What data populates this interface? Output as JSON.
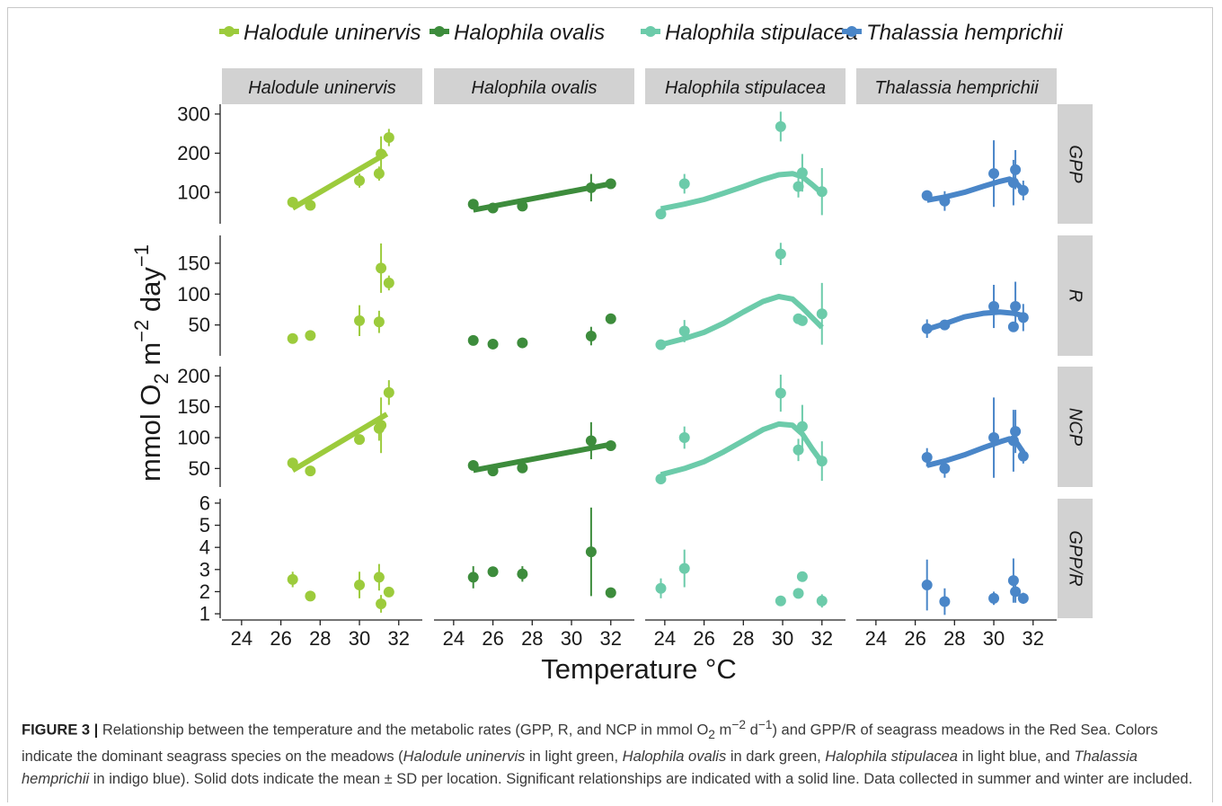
{
  "colors": {
    "Halodule uninervis": "#9ccb3c",
    "Halophila ovalis": "#3d8c3c",
    "Halophila stipulacea": "#6ccbaa",
    "Thalassia hemprichii": "#4a86c8",
    "strip_bg": "#d2d2d2"
  },
  "chart_data": {
    "type": "scatter",
    "species": [
      "Halodule uninervis",
      "Halophila ovalis",
      "Halophila stipulacea",
      "Thalassia hemprichii"
    ],
    "metrics": [
      "GPP",
      "R",
      "NCP",
      "GPP/R"
    ],
    "xlabel": "Temperature °C",
    "ylabel": {
      "main": "mmol O",
      "sub": "2",
      "m": " m",
      "exp1": "−2",
      "day": " day",
      "exp2": "−1"
    },
    "xlim": [
      23,
      33.2
    ],
    "xticks": [
      24,
      26,
      28,
      30,
      32
    ],
    "legend_position": "top",
    "rows": [
      {
        "metric": "GPP",
        "ylim": [
          20,
          325
        ],
        "yticks": [
          100,
          200,
          300
        ]
      },
      {
        "metric": "R",
        "ylim": [
          0,
          195
        ],
        "yticks": [
          50,
          100,
          150
        ]
      },
      {
        "metric": "NCP",
        "ylim": [
          20,
          215
        ],
        "yticks": [
          50,
          100,
          150,
          200
        ]
      },
      {
        "metric": "GPP/R",
        "ylim": [
          0.8,
          6.2
        ],
        "yticks": [
          1,
          2,
          3,
          4,
          5,
          6
        ]
      }
    ],
    "points": {
      "GPP": {
        "Halodule uninervis": [
          [
            26.6,
            75,
            null
          ],
          [
            27.5,
            67,
            null
          ],
          [
            30,
            130,
            18
          ],
          [
            31,
            148,
            18
          ],
          [
            31.1,
            198,
            45
          ],
          [
            31.5,
            240,
            22
          ]
        ],
        "Halophila ovalis": [
          [
            25,
            70,
            null
          ],
          [
            26,
            60,
            null
          ],
          [
            27.5,
            65,
            null
          ],
          [
            31,
            112,
            35
          ],
          [
            32,
            122,
            null
          ]
        ],
        "Halophila stipulacea": [
          [
            23.8,
            45,
            null
          ],
          [
            25,
            122,
            25
          ],
          [
            29.9,
            268,
            38
          ],
          [
            30.8,
            115,
            28
          ],
          [
            31,
            150,
            48
          ],
          [
            32,
            102,
            60
          ]
        ],
        "Thalassia hemprichii": [
          [
            26.6,
            92,
            null
          ],
          [
            27.5,
            78,
            25
          ],
          [
            30,
            148,
            85
          ],
          [
            31,
            125,
            58
          ],
          [
            31.1,
            158,
            50
          ],
          [
            31.5,
            105,
            25
          ]
        ]
      },
      "R": {
        "Halodule uninervis": [
          [
            26.6,
            28,
            null
          ],
          [
            27.5,
            33,
            null
          ],
          [
            30,
            57,
            25
          ],
          [
            31,
            55,
            18
          ],
          [
            31.1,
            142,
            40
          ],
          [
            31.5,
            118,
            12
          ]
        ],
        "Halophila ovalis": [
          [
            25,
            25,
            null
          ],
          [
            26,
            19,
            null
          ],
          [
            27.5,
            21,
            null
          ],
          [
            31,
            32,
            15
          ],
          [
            32,
            60,
            null
          ]
        ],
        "Halophila stipulacea": [
          [
            23.8,
            18,
            null
          ],
          [
            25,
            40,
            18
          ],
          [
            29.9,
            165,
            18
          ],
          [
            30.8,
            60,
            null
          ],
          [
            31,
            57,
            null
          ],
          [
            32,
            68,
            50
          ]
        ],
        "Thalassia hemprichii": [
          [
            26.6,
            44,
            15
          ],
          [
            27.5,
            50,
            8
          ],
          [
            30,
            80,
            35
          ],
          [
            31,
            47,
            null
          ],
          [
            31.1,
            80,
            40
          ],
          [
            31.5,
            62,
            22
          ]
        ]
      },
      "NCP": {
        "Halodule uninervis": [
          [
            26.6,
            59,
            null
          ],
          [
            27.5,
            46,
            null
          ],
          [
            30,
            97,
            null
          ],
          [
            31,
            115,
            20
          ],
          [
            31.1,
            120,
            45
          ],
          [
            31.5,
            173,
            20
          ]
        ],
        "Halophila ovalis": [
          [
            25,
            55,
            null
          ],
          [
            26,
            46,
            null
          ],
          [
            27.5,
            51,
            null
          ],
          [
            31,
            95,
            30
          ],
          [
            32,
            87,
            null
          ]
        ],
        "Halophila stipulacea": [
          [
            23.8,
            33,
            8
          ],
          [
            25,
            100,
            18
          ],
          [
            29.9,
            172,
            30
          ],
          [
            30.8,
            80,
            18
          ],
          [
            31,
            118,
            35
          ],
          [
            32,
            62,
            32
          ]
        ],
        "Thalassia hemprichii": [
          [
            26.6,
            68,
            15
          ],
          [
            27.5,
            50,
            15
          ],
          [
            30,
            100,
            65
          ],
          [
            31,
            95,
            50
          ],
          [
            31.1,
            110,
            35
          ],
          [
            31.5,
            70,
            12
          ]
        ]
      },
      "GPP/R": {
        "Halodule uninervis": [
          [
            26.6,
            2.55,
            0.35
          ],
          [
            27.5,
            1.8,
            null
          ],
          [
            30,
            2.3,
            0.6
          ],
          [
            31,
            2.65,
            0.6
          ],
          [
            31.1,
            1.45,
            0.4
          ],
          [
            31.5,
            1.98,
            null
          ]
        ],
        "Halophila ovalis": [
          [
            25,
            2.65,
            0.5
          ],
          [
            26,
            2.9,
            null
          ],
          [
            27.5,
            2.8,
            0.35
          ],
          [
            31,
            3.8,
            2.0
          ],
          [
            32,
            1.95,
            null
          ]
        ],
        "Halophila stipulacea": [
          [
            23.8,
            2.15,
            0.45
          ],
          [
            25,
            3.05,
            0.85
          ],
          [
            29.9,
            1.58,
            null
          ],
          [
            30.8,
            1.92,
            null
          ],
          [
            31,
            2.68,
            null
          ],
          [
            32,
            1.58,
            0.3
          ]
        ],
        "Thalassia hemprichii": [
          [
            26.6,
            2.3,
            1.15
          ],
          [
            27.5,
            1.55,
            0.6
          ],
          [
            30,
            1.7,
            0.3
          ],
          [
            31,
            2.5,
            1.0
          ],
          [
            31.1,
            2.0,
            0.5
          ],
          [
            31.5,
            1.7,
            0.25
          ]
        ]
      }
    },
    "fits": {
      "GPP": {
        "Halodule uninervis": [
          [
            26.6,
            60
          ],
          [
            31.4,
            200
          ]
        ],
        "Halophila ovalis": [
          [
            25,
            55
          ],
          [
            32,
            122
          ]
        ],
        "Halophila stipulacea": [
          [
            23.8,
            58
          ],
          [
            25,
            70
          ],
          [
            26,
            82
          ],
          [
            27,
            98
          ],
          [
            28,
            115
          ],
          [
            29,
            133
          ],
          [
            29.8,
            145
          ],
          [
            30.5,
            148
          ],
          [
            31,
            140
          ],
          [
            31.5,
            120
          ],
          [
            32,
            98
          ]
        ],
        "Thalassia hemprichii": [
          [
            26.6,
            80
          ],
          [
            27.5,
            88
          ],
          [
            28.5,
            100
          ],
          [
            29.5,
            116
          ],
          [
            30.3,
            128
          ],
          [
            30.8,
            134
          ],
          [
            31.1,
            126
          ],
          [
            31.5,
            105
          ]
        ]
      },
      "R": {
        "Halophila stipulacea": [
          [
            23.8,
            18
          ],
          [
            25,
            28
          ],
          [
            26,
            38
          ],
          [
            27,
            53
          ],
          [
            28,
            71
          ],
          [
            29,
            88
          ],
          [
            29.8,
            96
          ],
          [
            30.5,
            92
          ],
          [
            31,
            78
          ],
          [
            31.5,
            62
          ],
          [
            32,
            46
          ]
        ],
        "Thalassia hemprichii": [
          [
            26.6,
            43
          ],
          [
            27.5,
            52
          ],
          [
            28.5,
            63
          ],
          [
            29.5,
            69
          ],
          [
            30.3,
            71
          ],
          [
            31,
            69
          ],
          [
            31.5,
            65
          ]
        ]
      },
      "NCP": {
        "Halodule uninervis": [
          [
            26.6,
            47
          ],
          [
            31.4,
            138
          ]
        ],
        "Halophila ovalis": [
          [
            25,
            47
          ],
          [
            32,
            89
          ]
        ],
        "Halophila stipulacea": [
          [
            23.8,
            40
          ],
          [
            25,
            50
          ],
          [
            26,
            61
          ],
          [
            27,
            77
          ],
          [
            28,
            95
          ],
          [
            29,
            113
          ],
          [
            29.8,
            122
          ],
          [
            30.5,
            120
          ],
          [
            31,
            106
          ],
          [
            31.5,
            82
          ],
          [
            32,
            60
          ]
        ],
        "Thalassia hemprichii": [
          [
            26.6,
            55
          ],
          [
            27.5,
            62
          ],
          [
            28.5,
            72
          ],
          [
            29.5,
            84
          ],
          [
            30.3,
            93
          ],
          [
            30.8,
            98
          ],
          [
            31.1,
            95
          ],
          [
            31.5,
            76
          ]
        ]
      }
    }
  },
  "caption": {
    "label": "FIGURE 3 |",
    "text_1": " Relationship between the temperature and the metabolic rates (GPP, R, and NCP in mmol O",
    "sub_2": "2",
    "text_2": " m",
    "sup_m2": "−2",
    "text_3": " d",
    "sup_m1": "−1",
    "text_4": ") and GPP/R of seagrass meadows in the Red Sea. Colors indicate the dominant seagrass species on the meadows (",
    "sp1": "Halodule uninervis",
    "text_5": " in light green, ",
    "sp2": "Halophila ovalis",
    "text_6": " in dark green, ",
    "sp3": "Halophila stipulacea",
    "text_7": " in light blue, and ",
    "sp4": "Thalassia hemprichii",
    "text_8": " in indigo blue). Solid dots indicate the mean ± SD per location. Significant relationships are indicated with a solid line. Data collected in summer and winter are included."
  }
}
